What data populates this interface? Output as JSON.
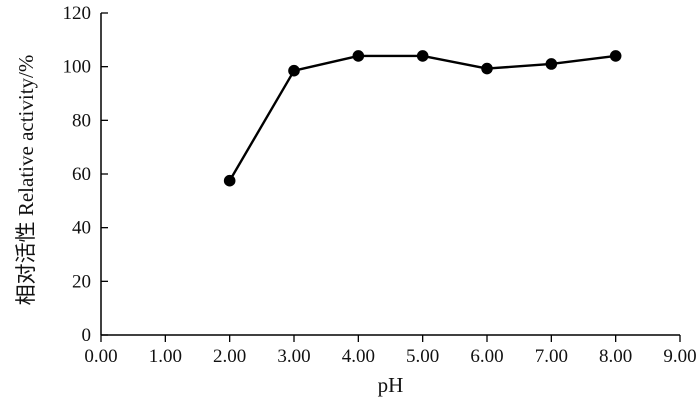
{
  "chart_data": {
    "type": "line",
    "xlabel": "pH",
    "ylabel": "相对活性  Relative activity/%",
    "xlim": [
      0,
      9
    ],
    "ylim": [
      0,
      120
    ],
    "x_ticks": [
      "0.00",
      "1.00",
      "2.00",
      "3.00",
      "4.00",
      "5.00",
      "6.00",
      "7.00",
      "8.00",
      "9.00"
    ],
    "y_ticks": [
      "0",
      "20",
      "40",
      "60",
      "80",
      "100",
      "120"
    ],
    "grid": false,
    "series": [
      {
        "x": [
          2,
          3,
          4,
          5,
          6,
          7,
          8
        ],
        "values": [
          57.5,
          98.5,
          104,
          104,
          99.3,
          101,
          104
        ],
        "color": "#000000",
        "marker": "filled-circle"
      }
    ]
  }
}
